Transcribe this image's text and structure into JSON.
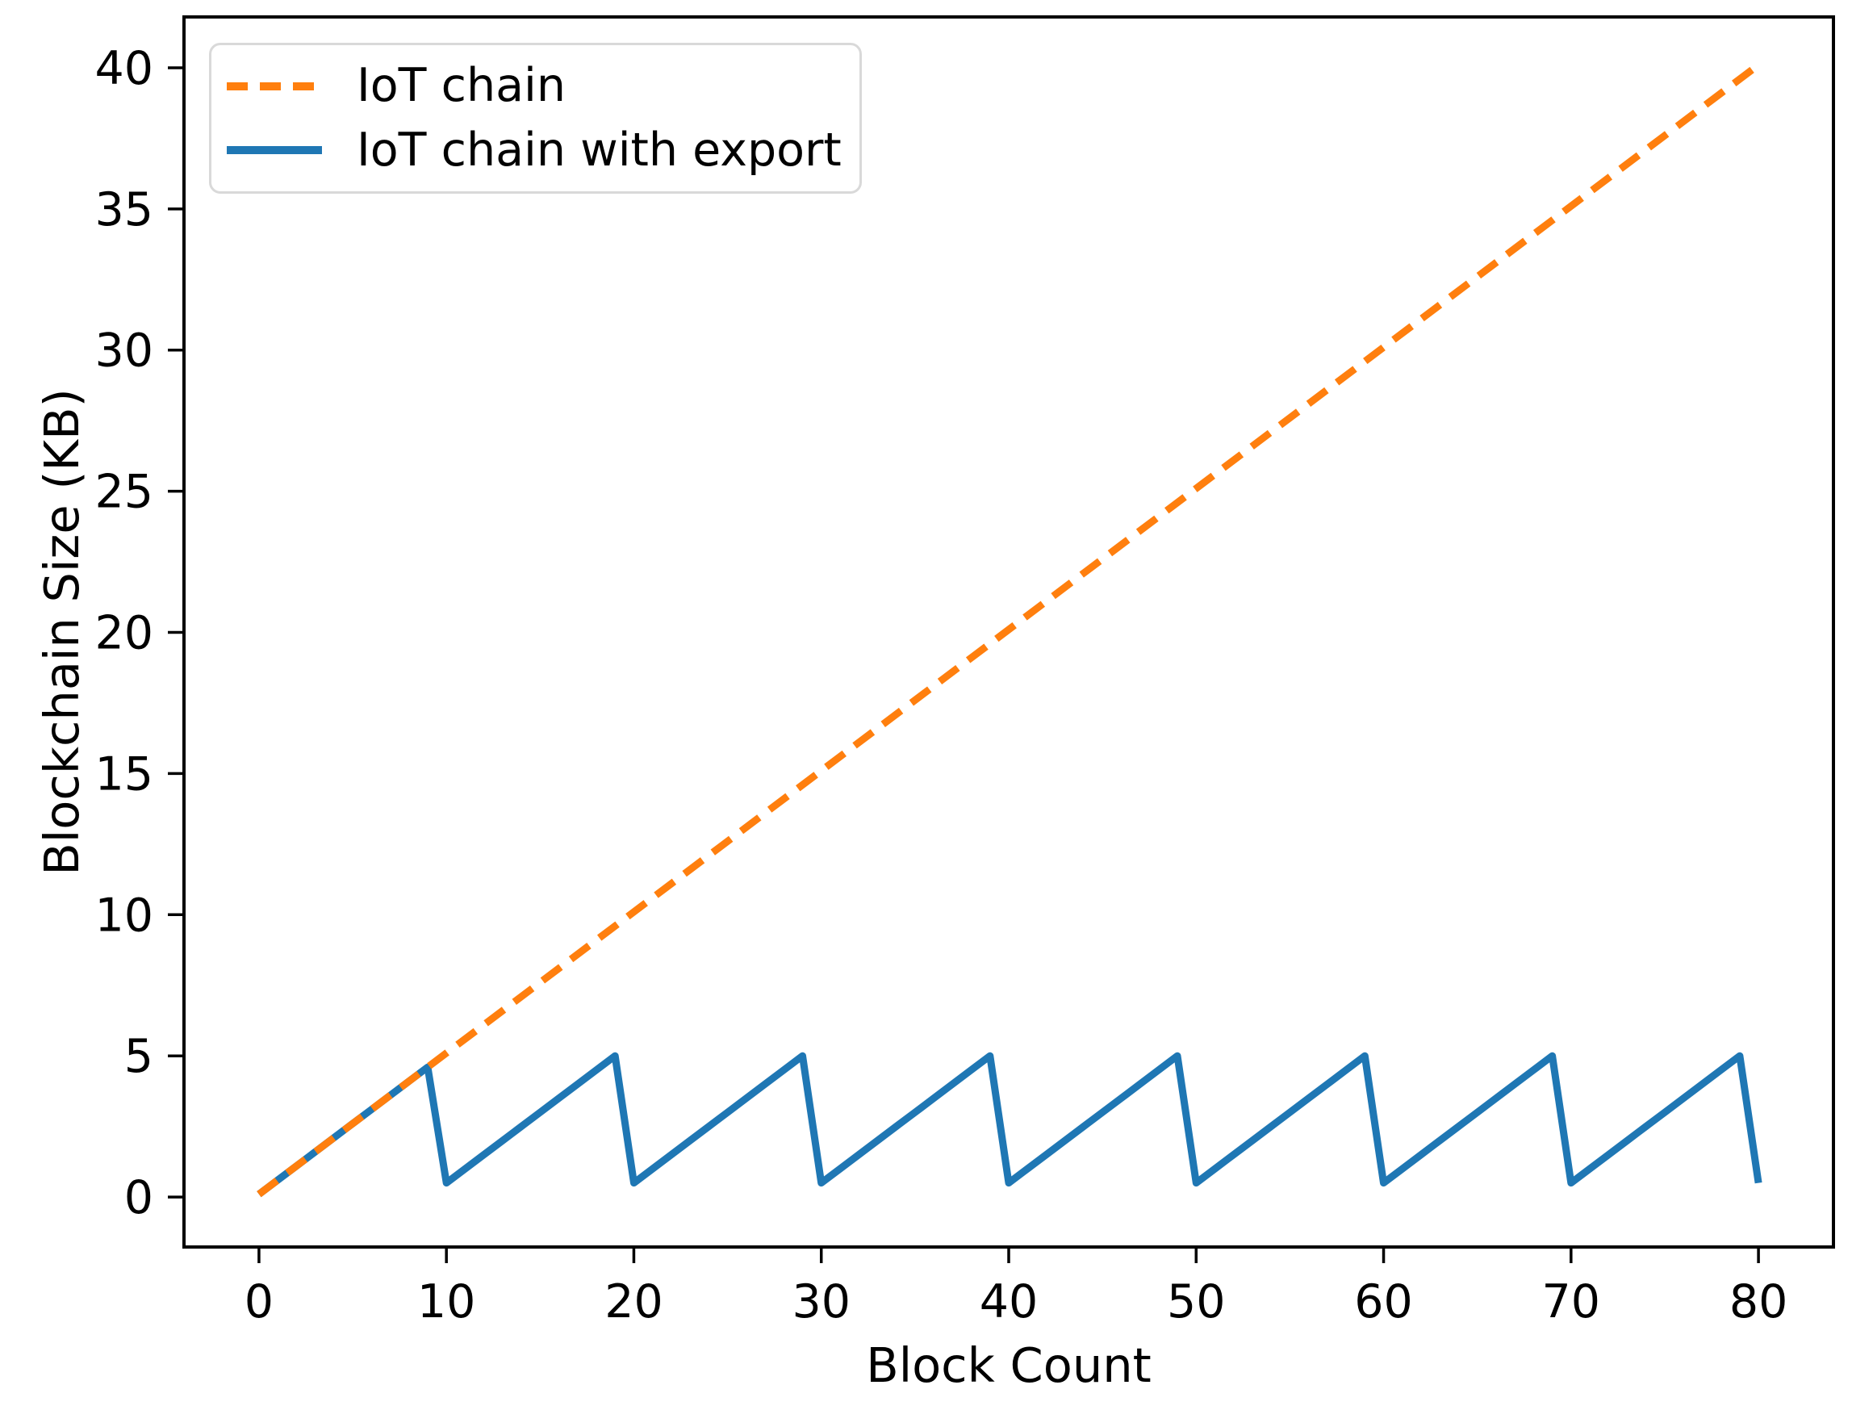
{
  "chart_data": {
    "type": "line",
    "title": "",
    "xlabel": "Block Count",
    "ylabel": "Blockchain Size (KB)",
    "xlim": [
      -4,
      84
    ],
    "ylim": [
      -1.77,
      41.8
    ],
    "x_ticks": [
      0,
      10,
      20,
      30,
      40,
      50,
      60,
      70,
      80
    ],
    "y_ticks": [
      0,
      5,
      10,
      15,
      20,
      25,
      30,
      35,
      40
    ],
    "grid": false,
    "legend_position": "upper left",
    "axis_color": "#000000",
    "series": [
      {
        "name": "IoT chain",
        "color": "#ff7f0e",
        "style": "dashed",
        "x": [
          0,
          80
        ],
        "y": [
          0.1,
          40.1
        ]
      },
      {
        "name": "IoT chain with export",
        "color": "#1f77b4",
        "style": "solid",
        "x": [
          0,
          1,
          2,
          3,
          4,
          5,
          6,
          7,
          8,
          9,
          10,
          11,
          12,
          13,
          14,
          15,
          16,
          17,
          18,
          19,
          20,
          21,
          22,
          23,
          24,
          25,
          26,
          27,
          28,
          29,
          30,
          31,
          32,
          33,
          34,
          35,
          36,
          37,
          38,
          39,
          40,
          41,
          42,
          43,
          44,
          45,
          46,
          47,
          48,
          49,
          50,
          51,
          52,
          53,
          54,
          55,
          56,
          57,
          58,
          59,
          60,
          61,
          62,
          63,
          64,
          65,
          66,
          67,
          68,
          69,
          70,
          71,
          72,
          73,
          74,
          75,
          76,
          77,
          78,
          79,
          80
        ],
        "y": [
          0.1,
          0.6,
          1.1,
          1.6,
          2.1,
          2.6,
          3.1,
          3.6,
          4.1,
          4.6,
          0.5,
          1.0,
          1.5,
          2.0,
          2.5,
          3.0,
          3.5,
          4.0,
          4.5,
          5.0,
          0.5,
          1.0,
          1.5,
          2.0,
          2.5,
          3.0,
          3.5,
          4.0,
          4.5,
          5.0,
          0.5,
          1.0,
          1.5,
          2.0,
          2.5,
          3.0,
          3.5,
          4.0,
          4.5,
          5.0,
          0.5,
          1.0,
          1.5,
          2.0,
          2.5,
          3.0,
          3.5,
          4.0,
          4.5,
          5.0,
          0.5,
          1.0,
          1.5,
          2.0,
          2.5,
          3.0,
          3.5,
          4.0,
          4.5,
          5.0,
          0.5,
          1.0,
          1.5,
          2.0,
          2.5,
          3.0,
          3.5,
          4.0,
          4.5,
          5.0,
          0.5,
          1.0,
          1.5,
          2.0,
          2.5,
          3.0,
          3.5,
          4.0,
          4.5,
          5.0,
          0.5
        ]
      }
    ]
  }
}
